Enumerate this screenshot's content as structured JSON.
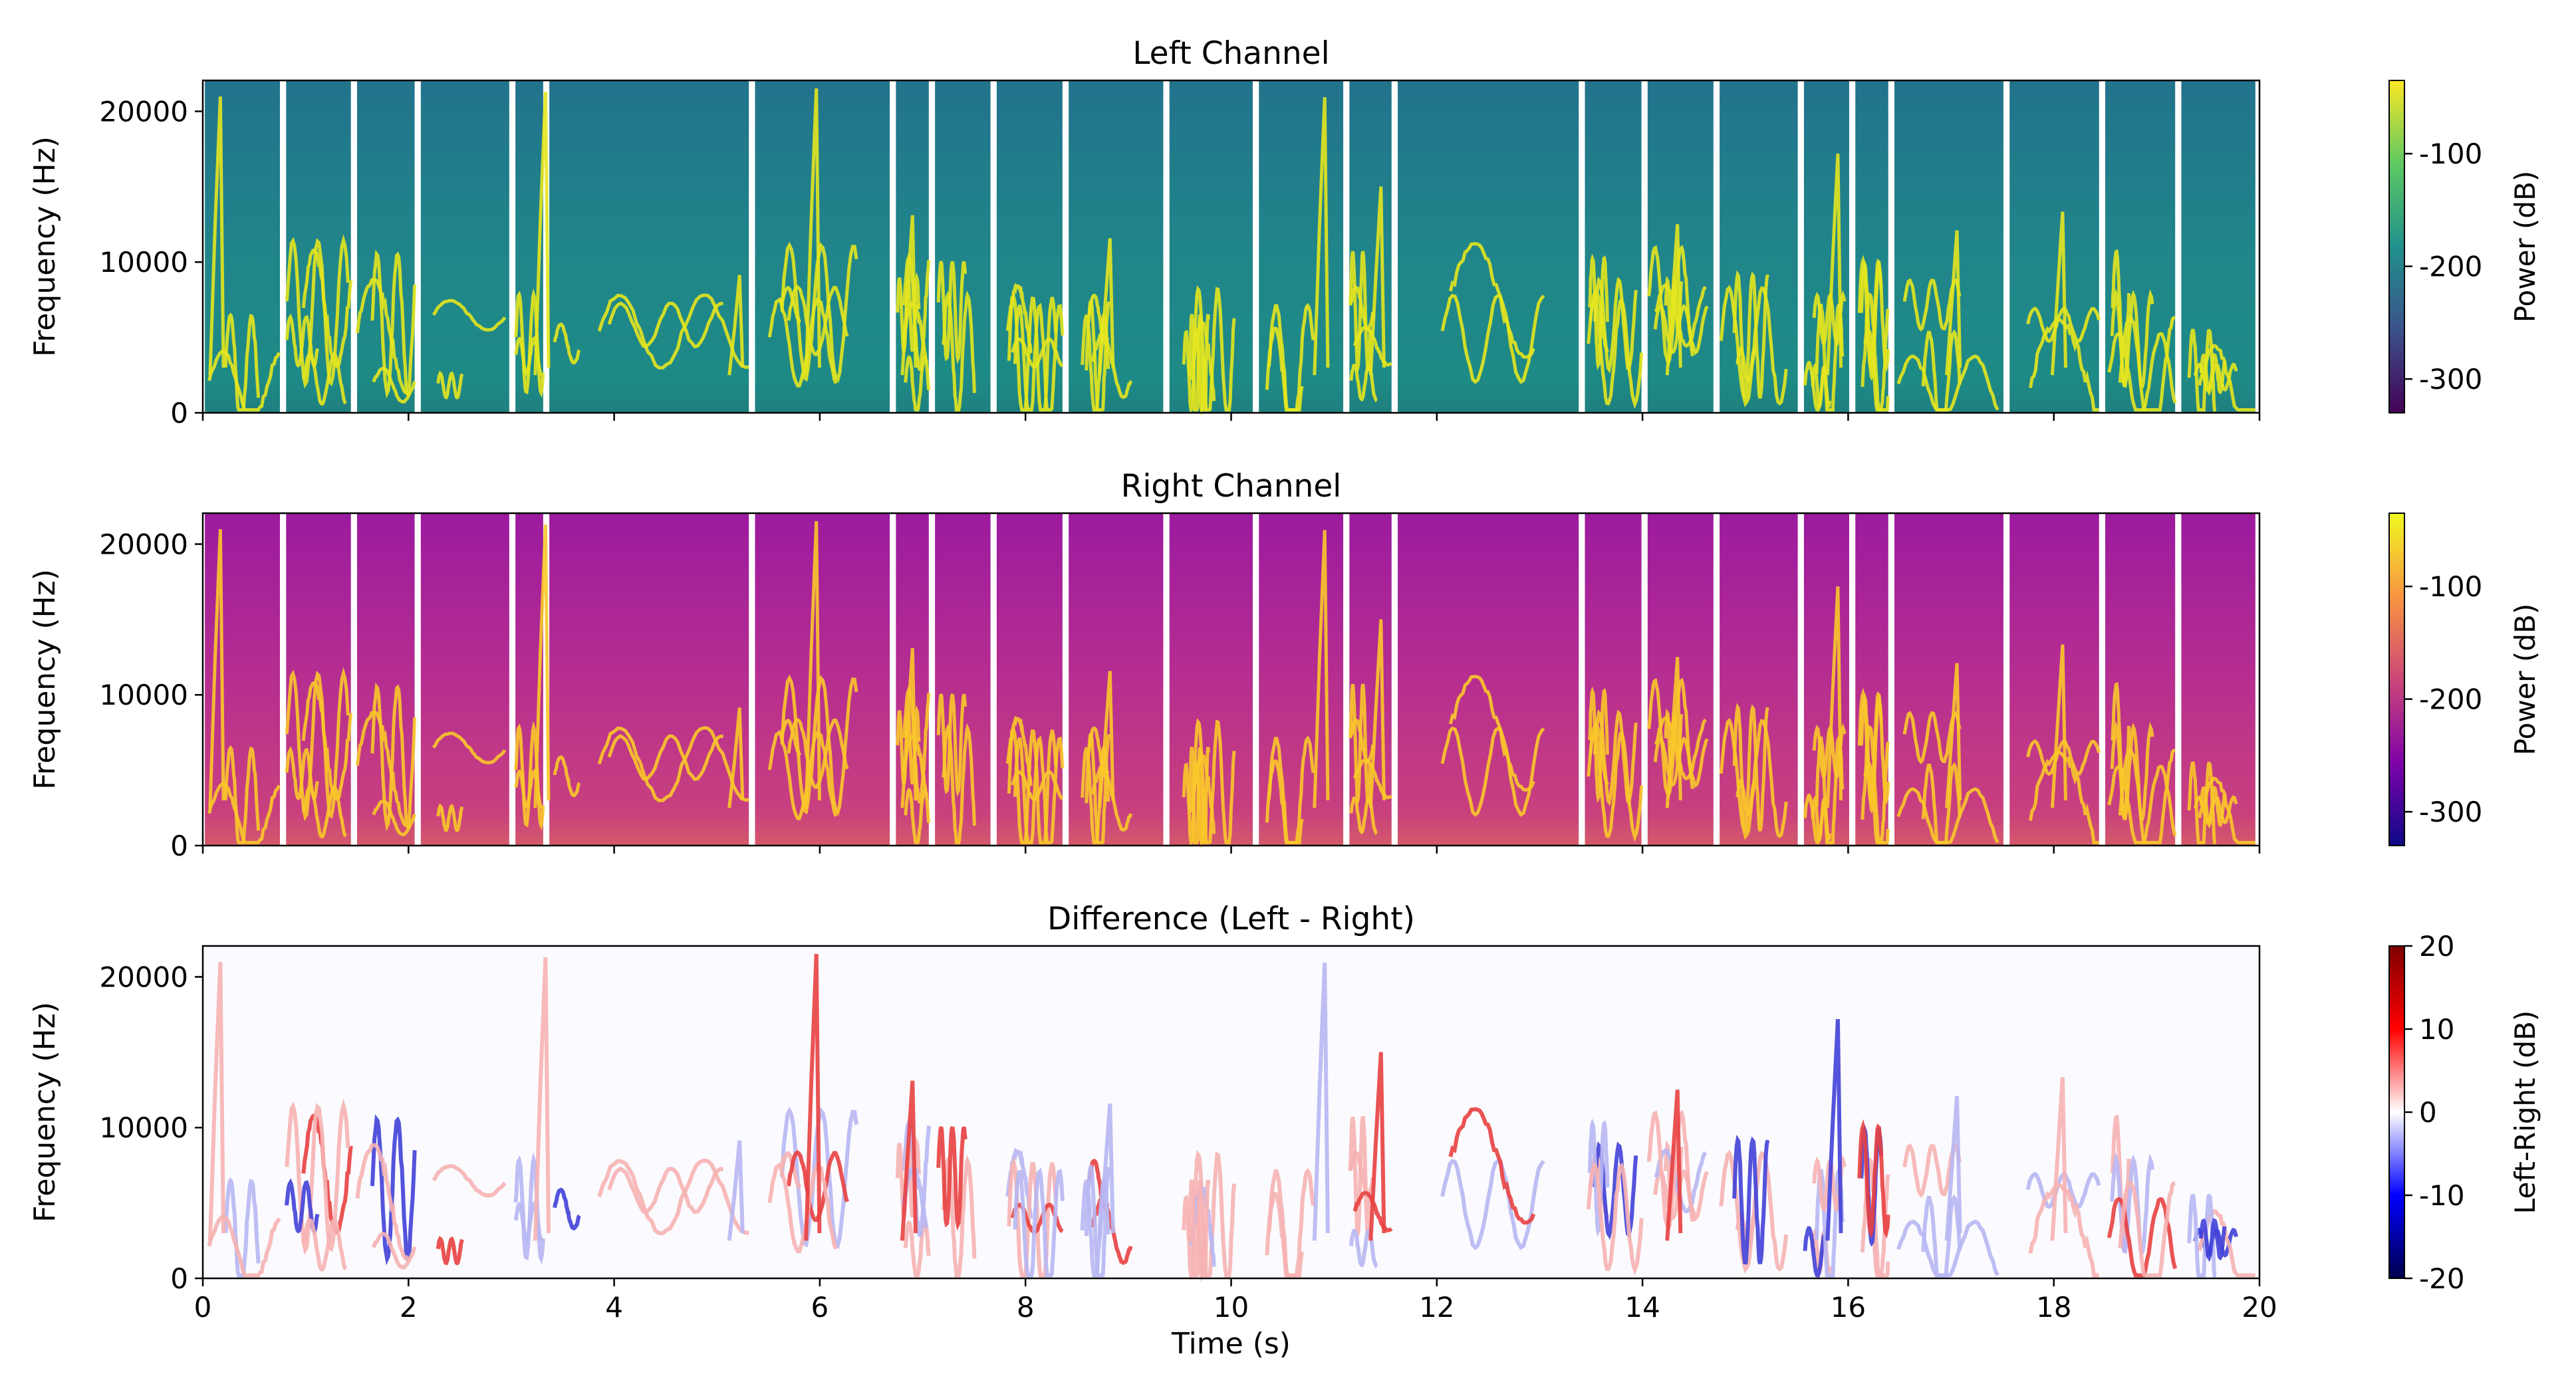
{
  "figure": {
    "panel_titles": [
      "Left Channel",
      "Right Channel",
      "Difference (Left - Right)"
    ],
    "ylabel": "Frequency (Hz)",
    "xlabel": "Time (s)",
    "colorbar_labels": [
      "Power (dB)",
      "Power (dB)",
      "Left-Right (dB)"
    ]
  },
  "chart_data": [
    {
      "type": "heatmap",
      "title": "Left Channel",
      "xlabel": "",
      "ylabel": "Frequency (Hz)",
      "xlim": [
        0,
        20
      ],
      "ylim": [
        0,
        22050
      ],
      "yticks": [
        0,
        10000,
        20000
      ],
      "colormap": "viridis",
      "colorbar": {
        "label": "Power (dB)",
        "ticks": [
          -100,
          -200,
          -300
        ],
        "range": [
          -330,
          -35
        ]
      },
      "silent_gaps_s": [
        [
          0.67,
          0.79
        ],
        [
          1.25,
          1.48
        ],
        [
          2.87,
          3.02
        ],
        [
          5.28,
          5.35
        ]
      ],
      "segment_starts_s": [
        0,
        0.79,
        1.48,
        2.1,
        3.02,
        3.35,
        5.35,
        6.72,
        7.1,
        7.7,
        8.4,
        9.38,
        10.25,
        11.13,
        11.6,
        13.42,
        14.03,
        14.73,
        15.55,
        16.05,
        16.43,
        17.55,
        18.48,
        19.22
      ],
      "grid": false
    },
    {
      "type": "heatmap",
      "title": "Right Channel",
      "xlabel": "",
      "ylabel": "Frequency (Hz)",
      "xlim": [
        0,
        20
      ],
      "ylim": [
        0,
        22050
      ],
      "yticks": [
        0,
        10000,
        20000
      ],
      "colormap": "plasma",
      "colorbar": {
        "label": "Power (dB)",
        "ticks": [
          -100,
          -200,
          -300
        ],
        "range": [
          -330,
          -35
        ]
      },
      "grid": false
    },
    {
      "type": "heatmap",
      "title": "Difference (Left - Right)",
      "xlabel": "Time (s)",
      "ylabel": "Frequency (Hz)",
      "xlim": [
        0,
        20
      ],
      "ylim": [
        0,
        22050
      ],
      "xticks": [
        0,
        2,
        4,
        6,
        8,
        10,
        12,
        14,
        16,
        18,
        20
      ],
      "yticks": [
        0,
        10000,
        20000
      ],
      "colormap": "seismic",
      "colorbar": {
        "label": "Left-Right (dB)",
        "ticks": [
          20,
          10,
          0,
          -10,
          -20
        ],
        "range": [
          -20,
          20
        ]
      },
      "grid": false
    }
  ]
}
